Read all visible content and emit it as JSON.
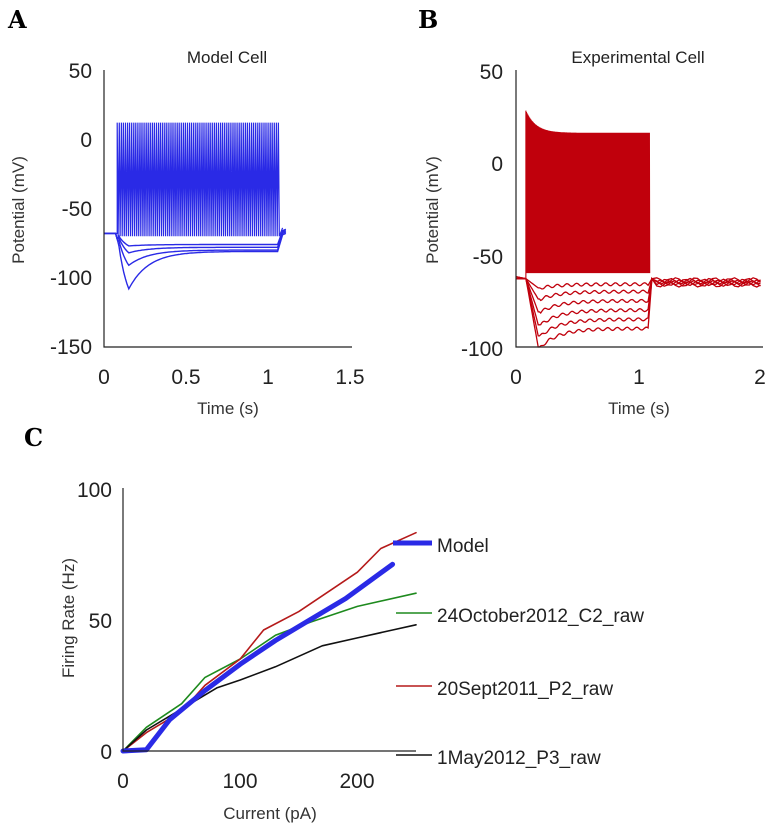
{
  "chart_data": [
    {
      "panel": "A",
      "type": "line",
      "title": "Model Cell",
      "xlabel": "Time (s)",
      "ylabel": "Potential (mV)",
      "xlim": [
        0,
        1.5
      ],
      "ylim": [
        -150,
        50
      ],
      "xticks": [
        "0",
        "0.5",
        "1",
        "1.5"
      ],
      "yticks": [
        "50",
        "0",
        "-50",
        "-100",
        "-150"
      ],
      "color": "#2a2ae6",
      "spike_train": {
        "start": 0.08,
        "end": 1.06,
        "interval": 0.0125,
        "peak": 12,
        "trough": -70
      },
      "hyperpolarized_traces": [
        {
          "name": "trace-1",
          "sag_min": -77,
          "steady": -76,
          "rebound": -66
        },
        {
          "name": "trace-2",
          "sag_min": -82,
          "steady": -78,
          "rebound": -67
        },
        {
          "name": "trace-3",
          "sag_min": -91,
          "steady": -80,
          "rebound": -68
        },
        {
          "name": "trace-4",
          "sag_min": -108,
          "steady": -81,
          "rebound": -69
        }
      ]
    },
    {
      "panel": "B",
      "type": "line",
      "title": "Experimental Cell",
      "xlabel": "Time (s)",
      "ylabel": "Potential (mV)",
      "xlim": [
        0,
        2
      ],
      "ylim": [
        -100,
        50
      ],
      "xticks": [
        "0",
        "1",
        "2"
      ],
      "yticks": [
        "50",
        "0",
        "-50",
        "-100"
      ],
      "color": "#c0000c",
      "spike_block": {
        "start": 0.08,
        "end": 1.08,
        "initial_peak": 28,
        "plateau_peak": 16,
        "trough": -60
      },
      "hyperpolarized_traces": [
        {
          "name": "trace-1",
          "sag_min": -68,
          "steady": -66
        },
        {
          "name": "trace-2",
          "sag_min": -74,
          "steady": -70
        },
        {
          "name": "trace-3",
          "sag_min": -81,
          "steady": -75
        },
        {
          "name": "trace-4",
          "sag_min": -88,
          "steady": -80
        },
        {
          "name": "trace-5",
          "sag_min": -94,
          "steady": -85
        },
        {
          "name": "trace-6",
          "sag_min": -100,
          "steady": -90
        }
      ],
      "baseline_after": -63
    },
    {
      "panel": "C",
      "type": "line",
      "xlabel": "Current (pA)",
      "ylabel": "Firing Rate (Hz)",
      "xlim": [
        0,
        250
      ],
      "ylim": [
        0,
        100
      ],
      "xticks": [
        "0",
        "100",
        "200"
      ],
      "yticks": [
        "100",
        "50",
        "0"
      ],
      "series": [
        {
          "name": "Model",
          "color": "#2a2ae6",
          "width": 5,
          "x": [
            0,
            20,
            40,
            70,
            100,
            130,
            160,
            190,
            230
          ],
          "y": [
            0,
            0.5,
            12,
            23,
            33,
            42,
            50,
            58,
            71
          ]
        },
        {
          "name": "24October2012_C2_raw",
          "color": "#1e8a1e",
          "width": 1.6,
          "x": [
            0,
            20,
            50,
            70,
            100,
            130,
            160,
            200,
            250
          ],
          "y": [
            0,
            9,
            18,
            28,
            35,
            44,
            49,
            55,
            60
          ]
        },
        {
          "name": "20Sept2011_P2_raw",
          "color": "#b51a1a",
          "width": 1.6,
          "x": [
            0,
            20,
            50,
            70,
            100,
            120,
            150,
            180,
            200,
            220,
            250
          ],
          "y": [
            0,
            7,
            15,
            25,
            35,
            46,
            53,
            62,
            68,
            77,
            83
          ]
        },
        {
          "name": "1May2012_P3_raw",
          "color": "#111111",
          "width": 1.6,
          "x": [
            0,
            20,
            50,
            80,
            100,
            130,
            170,
            200,
            230,
            250
          ],
          "y": [
            0,
            8,
            16,
            24,
            27,
            32,
            40,
            43,
            46,
            48
          ]
        }
      ]
    }
  ]
}
